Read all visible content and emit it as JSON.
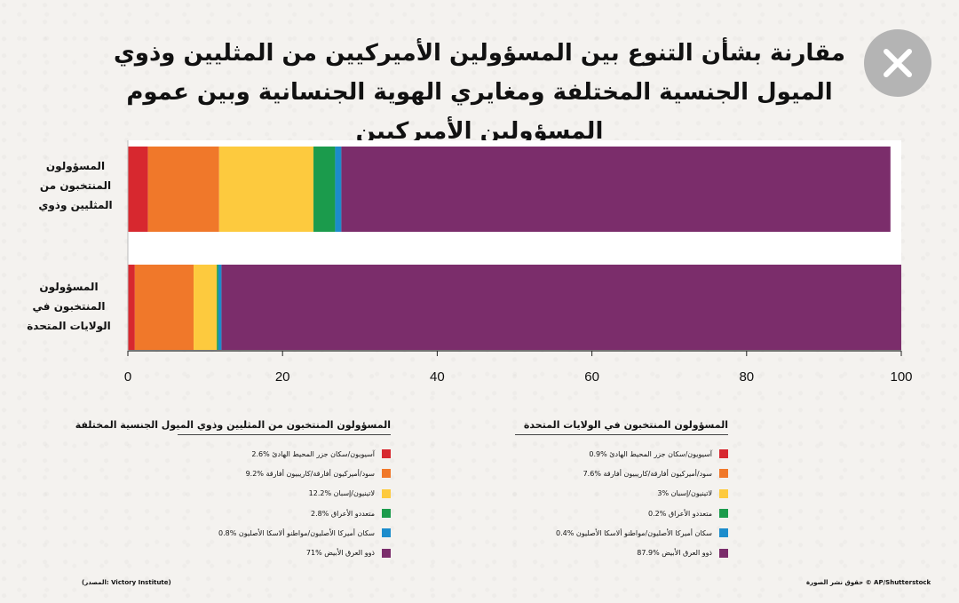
{
  "title": "مقارنة بشأن التنوع بين المسؤولين الأميركيين من المثليين وذوي الميول الجنسية المختلفة ومغايري الهوية الجنسانية وبين عموم المسؤولين الأميركيين",
  "close_icon": "close-icon",
  "colors": [
    "#d7282f",
    "#f0782a",
    "#fdca3e",
    "#1b9b4c",
    "#1c8ccc",
    "#7b2d6b"
  ],
  "chart_data": {
    "type": "bar",
    "orientation": "horizontal",
    "stacked": true,
    "categories": [
      "المسؤولون المنتخبون من المثليين وذوي",
      "المسؤولون المنتخبون في الولايات المتحدة"
    ],
    "series": [
      {
        "values": [
          2.6,
          0.9
        ]
      },
      {
        "values": [
          9.2,
          7.6
        ]
      },
      {
        "values": [
          12.2,
          3.0
        ]
      },
      {
        "values": [
          2.8,
          0.2
        ]
      },
      {
        "values": [
          0.8,
          0.4
        ]
      },
      {
        "values": [
          71.0,
          87.9
        ]
      }
    ],
    "xlim": [
      0,
      100
    ],
    "xticks": [
      0,
      20,
      40,
      60,
      80,
      100
    ],
    "grid": false,
    "legend_placement": "bottom"
  },
  "legends": [
    {
      "title": "المسؤولون المنتخبون من المثليين وذوي الميول الجنسية المختلفة",
      "items": [
        "آسيويون/سكان جزر المحيط الهادئ %2.6",
        "سود/أميركيون أفارقة/كاريبيون أفارقة %9.2",
        "لاتينيون/إسبان %12.2",
        "متعددو الأعراق %2.8",
        "سكان أميركا الأصليون/مواطنو ألاسكا الأصليون %0.8",
        "ذوو العرق الأبيض %71"
      ]
    },
    {
      "title": "المسؤولون المنتخبون في الولايات المتحدة",
      "items": [
        "آسيويون/سكان جزر المحيط الهادئ %0.9",
        "سود/أميركيون أفارقة/كاريبيون أفارقة %7.6",
        "لاتينيون/إسبان %3",
        "متعددو الأعراق %0.2",
        "سكان أميركا الأصليون/مواطنو ألاسكا الأصليون %0.4",
        "ذوو العرق الأبيض %87.9"
      ]
    }
  ],
  "credit_left": "(المصدر: Victory Institute)",
  "credit_right": "حقوق نشر الصورة © AP/Shutterstock"
}
